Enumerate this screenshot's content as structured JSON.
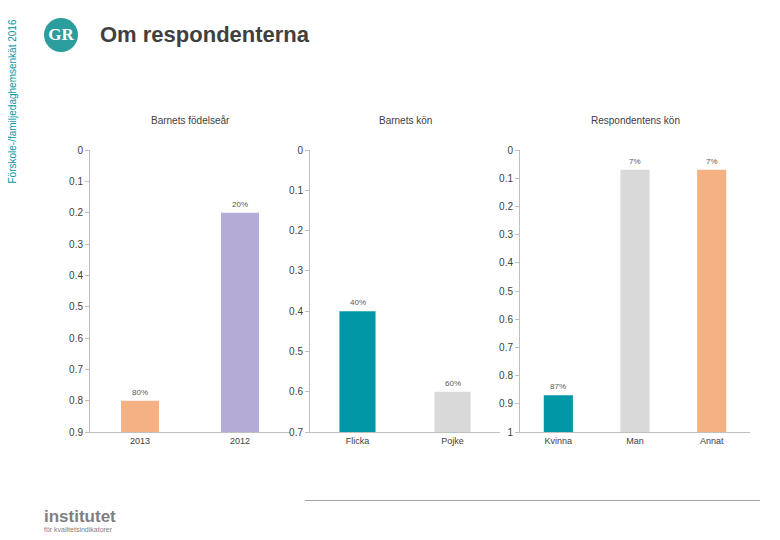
{
  "chart_data": [
    {
      "type": "bar",
      "title": "Barnets födelseår",
      "categories": [
        "2013",
        "2012"
      ],
      "values": [
        0.8,
        0.2
      ],
      "value_labels": [
        "80%",
        "20%"
      ],
      "colors": [
        "#f4b183",
        "#b4acd6"
      ],
      "ylim": [
        0,
        0.9
      ],
      "yticks": [
        0,
        0.1,
        0.2,
        0.3,
        0.4,
        0.5,
        0.6,
        0.7,
        0.8,
        0.9
      ],
      "data_labels": true,
      "grid": false
    },
    {
      "type": "bar",
      "title": "Barnets kön",
      "categories": [
        "Flicka",
        "Pojke"
      ],
      "values": [
        0.4,
        0.6
      ],
      "value_labels": [
        "40%",
        "60%"
      ],
      "colors": [
        "#0097a7",
        "#d9d9d9"
      ],
      "ylim": [
        0,
        0.7
      ],
      "yticks": [
        0,
        0.1,
        0.2,
        0.3,
        0.4,
        0.5,
        0.6,
        0.7
      ],
      "data_labels": true,
      "grid": false
    },
    {
      "type": "bar",
      "title": "Respondentens kön",
      "categories": [
        "Kvinna",
        "Man",
        "Annat"
      ],
      "values": [
        0.87,
        0.07,
        0.07
      ],
      "value_labels": [
        "87%",
        "7%",
        "7%"
      ],
      "colors": [
        "#0097a7",
        "#d9d9d9",
        "#f4b183"
      ],
      "ylim": [
        0,
        1
      ],
      "yticks": [
        0,
        0.1,
        0.2,
        0.3,
        0.4,
        0.5,
        0.6,
        0.7,
        0.8,
        0.9,
        1
      ],
      "data_labels": true,
      "grid": false
    }
  ],
  "page": {
    "title": "Om respondenterna",
    "side_label": "Förskole-/familjedaghemsenkät 2016",
    "logo": "GR",
    "footer_brand": "institutet",
    "footer_sub": "för kvalitetsindikatorer"
  }
}
